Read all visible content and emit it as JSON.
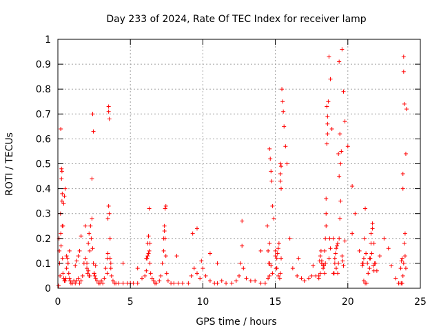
{
  "chart_data": {
    "type": "scatter",
    "title": "Day 233 of 2024, Rate Of TEC Index for receiver lamp",
    "xlabel": "GPS time / hours",
    "ylabel": "ROTI / TECUs",
    "xlim": [
      0,
      25
    ],
    "ylim": [
      0,
      1
    ],
    "xticks": [
      "0",
      "5",
      "10",
      "15",
      "20",
      "25"
    ],
    "yticks": [
      "0",
      "0.1",
      "0.2",
      "0.3",
      "0.4",
      "0.5",
      "0.6",
      "0.7",
      "0.8",
      "0.9",
      "1"
    ],
    "grid": true,
    "marker": "+",
    "color": "#ff0000",
    "series": [
      {
        "x": [
          0.05,
          0.08,
          0.1,
          0.12,
          0.15,
          0.18,
          0.2,
          0.22,
          0.25,
          0.28,
          0.3,
          0.32,
          0.35,
          0.4,
          0.45,
          0.5,
          0.55,
          0.6,
          0.65,
          0.7,
          0.75,
          0.8,
          0.85,
          0.9,
          1.0,
          1.1,
          1.2,
          1.3,
          1.4,
          1.5,
          1.6,
          1.7,
          1.8,
          1.9,
          2.0,
          2.1,
          2.15,
          2.2,
          2.25,
          2.3,
          2.35,
          2.4,
          2.45,
          2.5,
          2.6,
          2.7,
          2.8,
          2.9,
          3.0,
          3.1,
          3.2,
          3.3,
          3.4,
          3.45,
          3.5,
          3.55,
          3.6,
          3.65,
          3.7,
          3.8,
          3.9,
          4.0,
          4.2,
          4.5,
          4.8,
          5.0,
          5.2,
          5.5,
          5.8,
          6.0,
          6.1,
          6.2,
          6.25,
          6.3,
          6.35,
          6.4,
          6.5,
          6.6,
          6.7,
          6.8,
          7.0,
          7.1,
          7.2,
          7.3,
          7.35,
          7.4,
          7.45,
          7.5,
          7.6,
          7.8,
          8.0,
          8.3,
          8.6,
          9.0,
          9.2,
          9.4,
          9.6,
          9.8,
          9.9,
          10.0,
          10.2,
          10.5,
          10.8,
          11.0,
          11.3,
          11.6,
          12.0,
          12.3,
          12.5,
          12.6,
          12.7,
          12.8,
          13.0,
          13.3,
          13.6,
          14.0,
          14.3,
          14.5,
          14.55,
          14.6,
          14.65,
          14.7,
          14.75,
          14.8,
          14.9,
          15.0,
          15.1,
          15.2,
          15.3,
          15.35,
          15.4,
          15.45,
          15.5,
          15.55,
          15.6,
          15.7,
          15.8,
          16.0,
          16.2,
          16.5,
          16.8,
          17.0,
          17.3,
          17.5,
          17.8,
          18.0,
          18.1,
          18.2,
          18.3,
          18.4,
          18.45,
          18.5,
          18.55,
          18.6,
          18.65,
          18.7,
          18.8,
          18.9,
          19.0,
          19.1,
          19.2,
          19.3,
          19.35,
          19.4,
          19.45,
          19.5,
          19.55,
          19.6,
          19.7,
          19.8,
          20.0,
          20.3,
          20.5,
          20.8,
          21.0,
          21.1,
          21.2,
          21.3,
          21.4,
          21.5,
          21.6,
          21.7,
          21.8,
          21.9,
          22.0,
          22.2,
          22.5,
          22.8,
          23.0,
          23.3,
          23.5,
          23.6,
          23.7,
          23.75,
          23.8,
          23.85,
          23.9,
          23.95,
          24.0,
          24.05,
          0.2,
          0.25,
          0.28,
          0.3,
          14.6,
          14.6,
          14.6,
          15.35,
          15.35,
          15.35,
          15.4,
          15.4,
          18.5,
          18.5,
          18.55,
          18.6,
          18.6,
          19.35,
          19.4,
          19.4,
          19.45,
          19.5,
          23.8,
          23.8,
          23.85,
          23.85,
          23.9,
          3.5,
          3.55,
          3.5,
          2.4,
          2.45,
          2.35,
          7.4,
          7.45,
          6.3,
          21.2,
          21.7,
          12.7,
          19.8,
          1.9,
          1.6,
          20.3,
          14.0,
          9.3,
          9.6,
          11.0,
          8.2,
          10.5,
          5.5,
          4.5,
          16.6,
          17.6,
          18.2,
          18.3,
          18.35,
          18.4,
          18.45,
          19.0,
          19.05,
          19.1,
          19.15,
          19.2,
          19.25,
          19.3,
          15.0,
          15.05,
          15.1,
          15.15,
          15.2,
          15.25,
          0.35,
          0.4,
          0.45,
          0.5,
          1.2,
          1.3,
          1.4,
          1.5,
          2.0,
          2.05,
          2.1,
          2.15,
          2.2,
          6.1,
          6.15,
          6.2,
          6.25,
          6.35,
          7.3,
          7.35,
          21.0,
          21.05,
          21.1,
          21.15,
          21.25,
          21.35,
          21.5,
          21.55,
          21.6,
          21.65,
          21.75,
          21.8,
          21.85,
          23.65,
          23.7,
          23.75,
          23.95,
          24.0,
          3.4,
          3.45,
          3.6,
          3.65,
          2.5,
          2.55,
          2.6,
          0.6,
          0.7,
          0.8,
          14.45,
          14.5,
          14.7,
          14.8,
          18.0,
          18.05,
          18.1,
          18.15,
          18.2,
          18.7,
          18.75,
          18.8,
          19.6,
          19.65,
          19.7
        ],
        "y": [
          0.01,
          0.2,
          0.15,
          0.1,
          0.05,
          0.3,
          0.22,
          0.17,
          0.48,
          0.47,
          0.38,
          0.12,
          0.06,
          0.04,
          0.03,
          0.03,
          0.04,
          0.08,
          0.12,
          0.1,
          0.06,
          0.04,
          0.03,
          0.02,
          0.02,
          0.03,
          0.02,
          0.03,
          0.04,
          0.02,
          0.03,
          0.05,
          0.1,
          0.12,
          0.08,
          0.18,
          0.22,
          0.15,
          0.25,
          0.2,
          0.28,
          0.16,
          0.1,
          0.06,
          0.04,
          0.03,
          0.02,
          0.02,
          0.03,
          0.02,
          0.04,
          0.08,
          0.12,
          0.28,
          0.33,
          0.3,
          0.2,
          0.1,
          0.05,
          0.03,
          0.02,
          0.02,
          0.02,
          0.02,
          0.02,
          0.02,
          0.02,
          0.02,
          0.04,
          0.05,
          0.12,
          0.18,
          0.21,
          0.15,
          0.1,
          0.06,
          0.04,
          0.03,
          0.02,
          0.02,
          0.03,
          0.05,
          0.1,
          0.15,
          0.25,
          0.2,
          0.13,
          0.06,
          0.03,
          0.02,
          0.02,
          0.02,
          0.02,
          0.02,
          0.05,
          0.08,
          0.06,
          0.04,
          0.11,
          0.08,
          0.05,
          0.03,
          0.02,
          0.02,
          0.03,
          0.02,
          0.02,
          0.03,
          0.05,
          0.1,
          0.17,
          0.08,
          0.04,
          0.03,
          0.03,
          0.02,
          0.02,
          0.04,
          0.1,
          0.56,
          0.52,
          0.47,
          0.43,
          0.33,
          0.28,
          0.15,
          0.08,
          0.05,
          0.04,
          0.06,
          0.12,
          0.8,
          0.75,
          0.71,
          0.65,
          0.57,
          0.5,
          0.2,
          0.08,
          0.05,
          0.04,
          0.03,
          0.04,
          0.05,
          0.05,
          0.04,
          0.06,
          0.1,
          0.08,
          0.15,
          0.2,
          0.3,
          0.58,
          0.66,
          0.75,
          0.93,
          0.84,
          0.64,
          0.2,
          0.1,
          0.08,
          0.06,
          0.1,
          0.2,
          0.28,
          0.35,
          0.55,
          0.96,
          0.79,
          0.67,
          0.57,
          0.41,
          0.3,
          0.15,
          0.1,
          0.03,
          0.02,
          0.02,
          0.06,
          0.12,
          0.22,
          0.26,
          0.18,
          0.1,
          0.07,
          0.13,
          0.2,
          0.16,
          0.09,
          0.04,
          0.02,
          0.02,
          0.02,
          0.02,
          0.05,
          0.1,
          0.18,
          0.22,
          0.54,
          0.72,
          0.64,
          0.44,
          0.35,
          0.25,
          0.18,
          0.1,
          0.05,
          0.43,
          0.46,
          0.5,
          0.49,
          0.4,
          0.36,
          0.25,
          0.73,
          0.69,
          0.62,
          0.54,
          0.45,
          0.91,
          0.62,
          0.5,
          0.46,
          0.4,
          0.93,
          0.87,
          0.74,
          0.71,
          0.68,
          0.73,
          0.7,
          0.63,
          0.44,
          0.32,
          0.33,
          0.32,
          0.32,
          0.24,
          0.27,
          0.19,
          0.25,
          0.21,
          0.22,
          0.15,
          0.22,
          0.24,
          0.1,
          0.13,
          0.14,
          0.08,
          0.1,
          0.12,
          0.09,
          0.11,
          0.09,
          0.09,
          0.06,
          0.1,
          0.06,
          0.06,
          0.12,
          0.14,
          0.16,
          0.17,
          0.18,
          0.13,
          0.08,
          0.12,
          0.14,
          0.16,
          0.18,
          0.25,
          0.34,
          0.37,
          0.4,
          0.09,
          0.11,
          0.13,
          0.15,
          0.1,
          0.06,
          0.07,
          0.05,
          0.05,
          0.07,
          0.12,
          0.13,
          0.14,
          0.18,
          0.2,
          0.23,
          0.09,
          0.1,
          0.12,
          0.2,
          0.14,
          0.1,
          0.08,
          0.12,
          0.18,
          0.14,
          0.09,
          0.07,
          0.1,
          0.08,
          0.11,
          0.12,
          0.13,
          0.08,
          0.06,
          0.14,
          0.12,
          0.08,
          0.06,
          0.05,
          0.09,
          0.13,
          0.1,
          0.15,
          0.25,
          0.15,
          0.09,
          0.06,
          0.05,
          0.11,
          0.13,
          0.15,
          0.1,
          0.12,
          0.2,
          0.16,
          0.13,
          0.11,
          0.09
        ]
      }
    ]
  }
}
